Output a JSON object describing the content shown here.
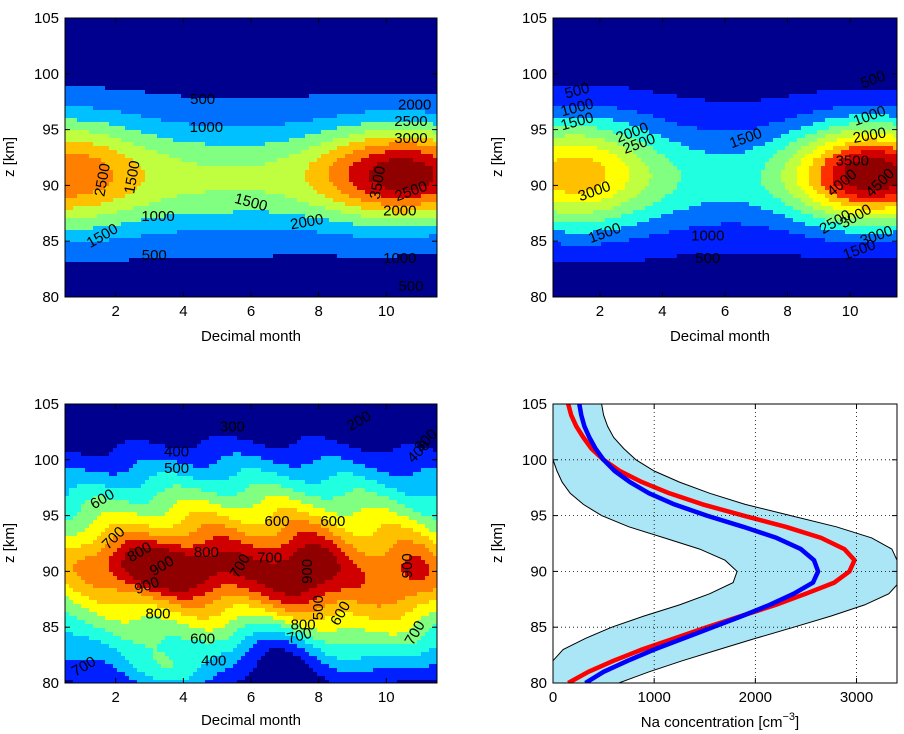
{
  "colors": {
    "jet": [
      "#00008f",
      "#0020ff",
      "#0070ff",
      "#00c0ff",
      "#20ffe0",
      "#80ff80",
      "#c0ff40",
      "#ffff00",
      "#ffc000",
      "#ff8000",
      "#ff3000",
      "#d00000",
      "#900000"
    ],
    "band": "#aae6f5",
    "red_line": "#ff0000",
    "blue_line": "#0000ff",
    "grid": "#000000"
  },
  "chart_data": [
    {
      "type": "heatmap",
      "panel": "top-left",
      "xlabel": "Decimal month",
      "ylabel": "z [km]",
      "xlim": [
        0.5,
        11.5
      ],
      "ylim": [
        80,
        105
      ],
      "xticks": [
        "2",
        "4",
        "6",
        "8",
        "10"
      ],
      "yticks": [
        "80",
        "85",
        "90",
        "95",
        "100",
        "105"
      ],
      "levels": [
        0,
        500,
        1000,
        1500,
        2000,
        2500,
        3000,
        3500,
        4000
      ],
      "contour_labels": [
        "500",
        "1000",
        "1500",
        "2000",
        "2500",
        "3000",
        "3500",
        "1000",
        "500",
        "1500",
        "2000",
        "2500",
        "1500",
        "2000",
        "2500",
        "1000",
        "500"
      ]
    },
    {
      "type": "heatmap",
      "panel": "top-right",
      "xlabel": "Decimal month",
      "ylabel": "z [km]",
      "xlim": [
        0.5,
        11.5
      ],
      "ylim": [
        80,
        105
      ],
      "xticks": [
        "2",
        "4",
        "6",
        "8",
        "10"
      ],
      "yticks": [
        "80",
        "85",
        "90",
        "95",
        "100",
        "105"
      ],
      "levels": [
        0,
        500,
        1000,
        1500,
        2000,
        2500,
        3000,
        3500,
        4000,
        4500,
        5000
      ],
      "contour_labels": [
        "500",
        "1000",
        "1500",
        "2000",
        "2500",
        "3000",
        "1500",
        "500",
        "1000",
        "1500",
        "2000",
        "3500",
        "4000",
        "4500",
        "3000",
        "2500",
        "3000",
        "1500",
        "1000",
        "500"
      ]
    },
    {
      "type": "heatmap",
      "panel": "bottom-left",
      "xlabel": "Decimal month",
      "ylabel": "z [km]",
      "xlim": [
        0.5,
        11.5
      ],
      "ylim": [
        80,
        105
      ],
      "xticks": [
        "2",
        "4",
        "6",
        "8",
        "10"
      ],
      "yticks": [
        "80",
        "85",
        "90",
        "95",
        "100",
        "105"
      ],
      "levels": [
        0,
        200,
        300,
        400,
        500,
        600,
        700,
        800,
        900,
        1000
      ],
      "contour_labels": [
        "300",
        "200",
        "300",
        "400",
        "400",
        "500",
        "600",
        "700",
        "800",
        "900",
        "900",
        "800",
        "700",
        "600",
        "600",
        "700",
        "900",
        "800",
        "700",
        "600",
        "900",
        "700",
        "500",
        "400",
        "600",
        "800",
        "700"
      ]
    },
    {
      "type": "line",
      "panel": "bottom-right",
      "xlabel": "Na concentration [cm",
      "xlabel_sup": "−3",
      "xlabel_end": "]",
      "ylabel": "z [km]",
      "xlim": [
        0,
        3400
      ],
      "ylim": [
        80,
        105
      ],
      "grid": true,
      "xticks": [
        "0",
        "1000",
        "2000",
        "3000"
      ],
      "yticks": [
        "80",
        "85",
        "90",
        "95",
        "100",
        "105"
      ],
      "z": [
        80,
        81,
        82,
        83,
        84,
        85,
        86,
        87,
        88,
        89,
        90,
        91,
        92,
        93,
        94,
        95,
        96,
        97,
        98,
        99,
        100,
        101,
        102,
        103,
        104,
        105
      ],
      "series": [
        {
          "color": "red",
          "values": [
            150,
            350,
            600,
            880,
            1200,
            1520,
            1860,
            2200,
            2500,
            2780,
            2930,
            2980,
            2880,
            2650,
            2300,
            1880,
            1480,
            1150,
            880,
            660,
            500,
            380,
            300,
            230,
            180,
            150
          ]
        },
        {
          "color": "blue",
          "values": [
            320,
            500,
            740,
            1000,
            1290,
            1580,
            1870,
            2140,
            2380,
            2570,
            2620,
            2580,
            2450,
            2210,
            1880,
            1520,
            1200,
            950,
            760,
            610,
            500,
            420,
            360,
            310,
            280,
            260
          ]
        },
        {
          "color": "band",
          "lower": [
            0,
            0,
            0,
            100,
            320,
            580,
            900,
            1250,
            1550,
            1780,
            1820,
            1700,
            1450,
            1100,
            750,
            480,
            300,
            170,
            90,
            40,
            0,
            0,
            0,
            0,
            0,
            0
          ],
          "upper": [
            650,
            950,
            1280,
            1640,
            2000,
            2380,
            2750,
            3080,
            3320,
            3420,
            3420,
            3400,
            3350,
            3150,
            2800,
            2350,
            1900,
            1550,
            1250,
            1000,
            820,
            700,
            600,
            540,
            500,
            480
          ]
        }
      ]
    }
  ]
}
